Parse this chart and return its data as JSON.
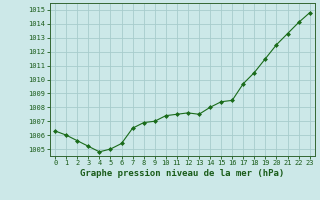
{
  "x": [
    0,
    1,
    2,
    3,
    4,
    5,
    6,
    7,
    8,
    9,
    10,
    11,
    12,
    13,
    14,
    15,
    16,
    17,
    18,
    19,
    20,
    21,
    22,
    23
  ],
  "y": [
    1006.3,
    1006.0,
    1005.6,
    1005.2,
    1004.8,
    1005.0,
    1005.4,
    1006.5,
    1006.9,
    1007.0,
    1007.4,
    1007.5,
    1007.6,
    1007.5,
    1008.0,
    1008.4,
    1008.5,
    1009.7,
    1010.5,
    1011.5,
    1012.5,
    1013.3,
    1014.1,
    1014.8
  ],
  "ylim": [
    1004.5,
    1015.5
  ],
  "yticks": [
    1005,
    1006,
    1007,
    1008,
    1009,
    1010,
    1011,
    1012,
    1013,
    1014,
    1015
  ],
  "xlim": [
    -0.5,
    23.5
  ],
  "xticks": [
    0,
    1,
    2,
    3,
    4,
    5,
    6,
    7,
    8,
    9,
    10,
    11,
    12,
    13,
    14,
    15,
    16,
    17,
    18,
    19,
    20,
    21,
    22,
    23
  ],
  "xlabel": "Graphe pression niveau de la mer (hPa)",
  "line_color": "#1a6b1a",
  "marker_color": "#1a6b1a",
  "bg_color": "#cce8e8",
  "grid_color": "#a8cccc",
  "axis_color": "#336633",
  "tick_color": "#1a5c1a",
  "label_color": "#1a5c1a",
  "xlabel_fontsize": 6.5,
  "xlabel_fontweight": "bold",
  "tick_fontsize": 5.0
}
